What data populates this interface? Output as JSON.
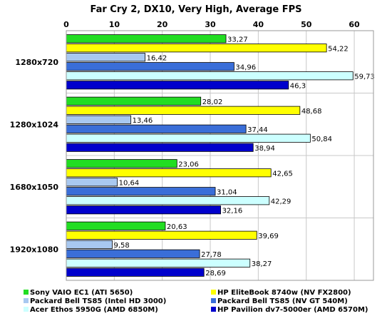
{
  "chart_data": {
    "type": "bar",
    "orientation": "horizontal",
    "title": "Far Cry 2, DX10, Very High, Average FPS",
    "xlim": [
      0,
      64
    ],
    "ticks": [
      0,
      10,
      20,
      30,
      40,
      50,
      60
    ],
    "grid": true,
    "categories": [
      "1280x720",
      "1280x1024",
      "1680x1050",
      "1920x1080"
    ],
    "series": [
      {
        "name": "Sony VAIO EC1 (ATI 5650)",
        "color": "#22dd22",
        "values": [
          33.27,
          28.02,
          23.06,
          20.63
        ],
        "labels": [
          "33,27",
          "28,02",
          "23,06",
          "20,63"
        ]
      },
      {
        "name": "HP EliteBook 8740w (NV FX2800)",
        "color": "#ffff00",
        "values": [
          54.22,
          48.68,
          42.65,
          39.69
        ],
        "labels": [
          "54,22",
          "48,68",
          "42,65",
          "39,69"
        ]
      },
      {
        "name": "Packard Bell TS85 (Intel HD 3000)",
        "color": "#a8c8f0",
        "values": [
          16.42,
          13.46,
          10.64,
          9.58
        ],
        "labels": [
          "16,42",
          "13,46",
          "10,64",
          "9,58"
        ]
      },
      {
        "name": "Packard Bell TS85 (NV GT 540M)",
        "color": "#3a6ed8",
        "values": [
          34.96,
          37.44,
          31.04,
          27.78
        ],
        "labels": [
          "34,96",
          "37,44",
          "31,04",
          "27,78"
        ]
      },
      {
        "name": "Acer Ethos 5950G (AMD 6850M)",
        "color": "#ccffff",
        "values": [
          59.73,
          50.84,
          42.29,
          38.27
        ],
        "labels": [
          "59,73",
          "50,84",
          "42,29",
          "38,27"
        ]
      },
      {
        "name": "HP Pavilion dv7-5000er (AMD 6570M)",
        "color": "#0000cc",
        "values": [
          46.3,
          38.94,
          32.16,
          28.69
        ],
        "labels": [
          "46,3",
          "38,94",
          "32,16",
          "28,69"
        ]
      }
    ],
    "legend_position": "bottom"
  }
}
